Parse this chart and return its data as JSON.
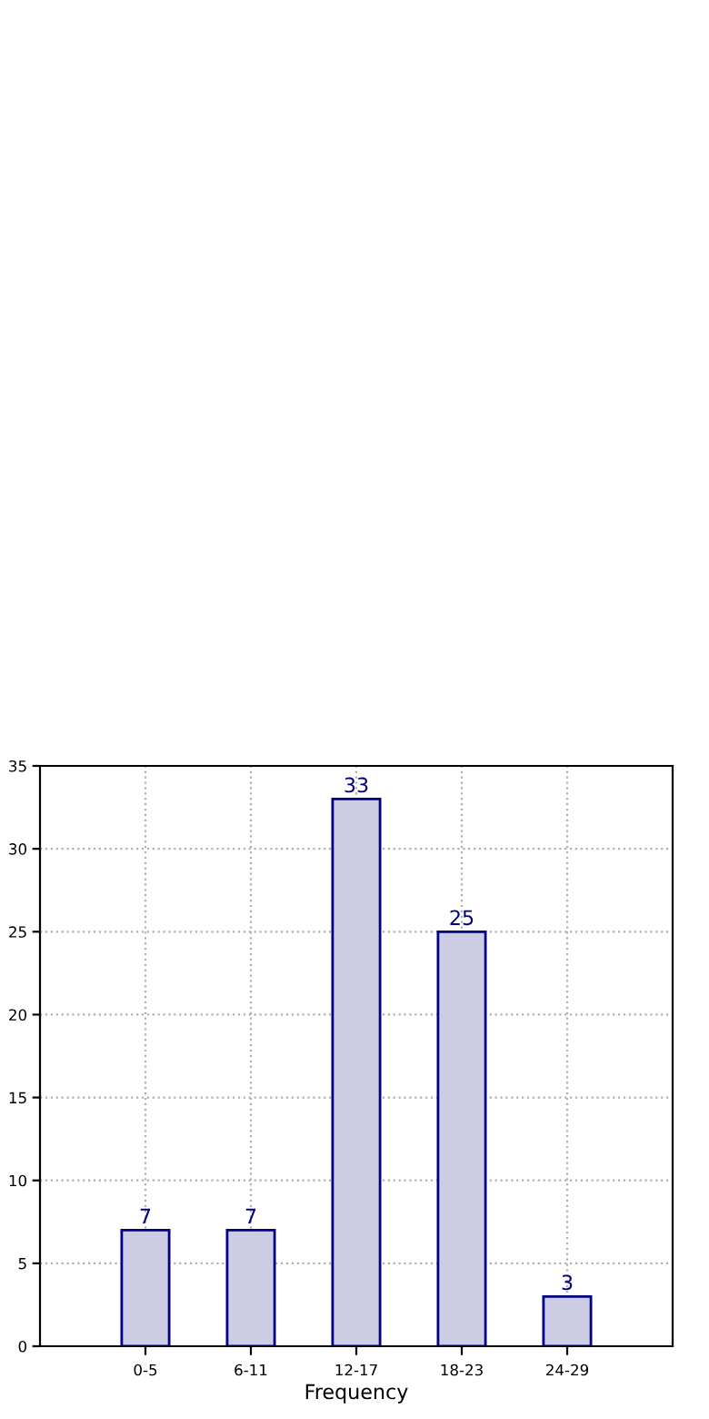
{
  "chart_data": {
    "type": "bar",
    "xlabel": "Frequency",
    "categories": [
      "0-5",
      "6-11",
      "12-17",
      "18-23",
      "24-29"
    ],
    "values": [
      7,
      7,
      33,
      25,
      3
    ],
    "color": "#ccccE4",
    "ylim": [
      0,
      35
    ],
    "yticks": [
      0,
      5,
      10,
      15,
      20,
      25,
      30,
      35
    ],
    "grid": true,
    "data_labels": true
  }
}
